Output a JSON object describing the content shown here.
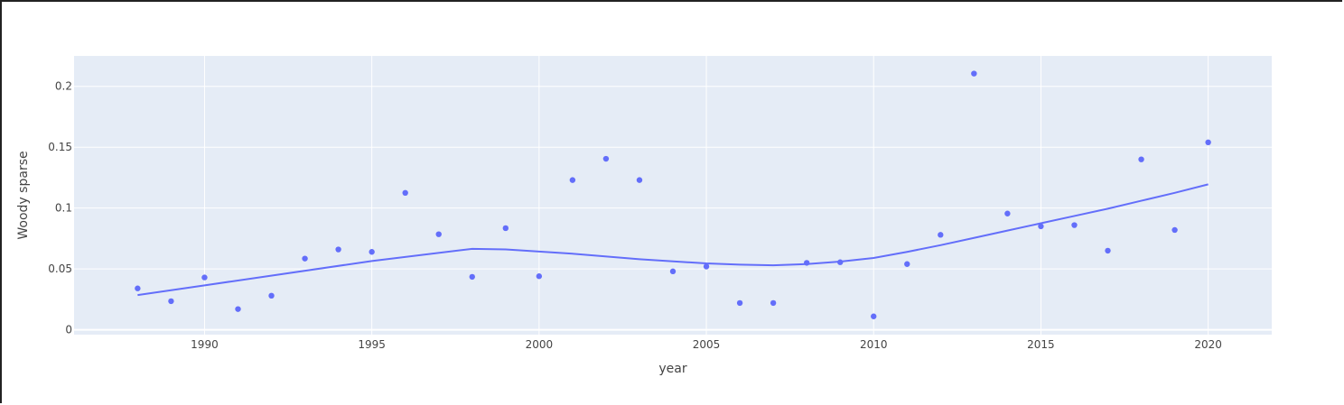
{
  "chart_data": {
    "type": "scatter",
    "title": "",
    "xlabel": "year",
    "ylabel": "Woody sparse",
    "xlim": [
      1986.1,
      2021.9
    ],
    "ylim": [
      -0.004,
      0.225
    ],
    "x_ticks": [
      1990,
      1995,
      2000,
      2005,
      2010,
      2015,
      2020
    ],
    "x_tick_labels": [
      "1990",
      "1995",
      "2000",
      "2005",
      "2010",
      "2015",
      "2020"
    ],
    "y_ticks": [
      0,
      0.05,
      0.1,
      0.15,
      0.2
    ],
    "y_tick_labels": [
      "0",
      "0.05",
      "0.1",
      "0.15",
      "0.2"
    ],
    "grid": true,
    "colors": {
      "marker": "#636efa",
      "line": "#636efa",
      "plot_bg": "#e5ecf6",
      "grid": "#ffffff"
    },
    "series": [
      {
        "type": "scatter",
        "x": [
          1988,
          1989,
          1990,
          1991,
          1992,
          1993,
          1994,
          1995,
          1996,
          1997,
          1998,
          1999,
          2000,
          2001,
          2002,
          2003,
          2004,
          2005,
          2006,
          2007,
          2008,
          2009,
          2010,
          2011,
          2012,
          2013,
          2014,
          2015,
          2016,
          2017,
          2018,
          2019,
          2020
        ],
        "y": [
          0.034,
          0.0235,
          0.043,
          0.017,
          0.028,
          0.0585,
          0.066,
          0.064,
          0.1125,
          0.0785,
          0.0435,
          0.0835,
          0.044,
          0.123,
          0.1405,
          0.123,
          0.048,
          0.052,
          0.022,
          0.022,
          0.055,
          0.0555,
          0.011,
          0.054,
          0.078,
          0.2105,
          0.0955,
          0.085,
          0.086,
          0.065,
          0.14,
          0.082,
          0.154
        ]
      },
      {
        "type": "line",
        "x": [
          1988,
          1990,
          1995,
          1998,
          1999,
          2001,
          2003,
          2005,
          2006,
          2007,
          2008,
          2009,
          2010,
          2011,
          2012,
          2013,
          2014,
          2015,
          2016,
          2017,
          2018,
          2019,
          2020
        ],
        "y": [
          0.0285,
          0.0365,
          0.0565,
          0.0665,
          0.066,
          0.0625,
          0.058,
          0.0545,
          0.0535,
          0.053,
          0.054,
          0.056,
          0.059,
          0.064,
          0.0695,
          0.0755,
          0.0815,
          0.0875,
          0.0935,
          0.0995,
          0.106,
          0.1125,
          0.1195
        ]
      }
    ]
  }
}
